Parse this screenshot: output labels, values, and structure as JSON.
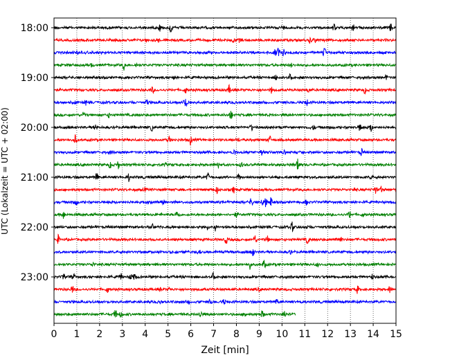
{
  "chart_data": {
    "type": "line",
    "chart_kind": "seismogram-helicorder",
    "xlabel": "Zeit  [min]",
    "ylabel": "UTC (Lokalzeit = UTC + 02:00)",
    "xlim": [
      0,
      15
    ],
    "x_ticks": [
      0,
      1,
      2,
      3,
      4,
      5,
      6,
      7,
      8,
      9,
      10,
      11,
      12,
      13,
      14,
      15
    ],
    "y_tick_labels": [
      "18:00",
      "19:00",
      "20:00",
      "21:00",
      "22:00",
      "23:00"
    ],
    "trace_interval_minutes": 15,
    "start_time": "18:00",
    "vertical_grid": "dotted",
    "trace_colors": [
      "#000000",
      "#ff0000",
      "#0000ff",
      "#008000"
    ],
    "traces": [
      {
        "start": "18:00",
        "color": "#000000",
        "end_minute": 15
      },
      {
        "start": "18:15",
        "color": "#ff0000",
        "end_minute": 15
      },
      {
        "start": "18:30",
        "color": "#0000ff",
        "end_minute": 15
      },
      {
        "start": "18:45",
        "color": "#008000",
        "end_minute": 15
      },
      {
        "start": "19:00",
        "color": "#000000",
        "end_minute": 15
      },
      {
        "start": "19:15",
        "color": "#ff0000",
        "end_minute": 15
      },
      {
        "start": "19:30",
        "color": "#0000ff",
        "end_minute": 15
      },
      {
        "start": "19:45",
        "color": "#008000",
        "end_minute": 15
      },
      {
        "start": "20:00",
        "color": "#000000",
        "end_minute": 15
      },
      {
        "start": "20:15",
        "color": "#ff0000",
        "end_minute": 15
      },
      {
        "start": "20:30",
        "color": "#0000ff",
        "end_minute": 15
      },
      {
        "start": "20:45",
        "color": "#008000",
        "end_minute": 15
      },
      {
        "start": "21:00",
        "color": "#000000",
        "end_minute": 15
      },
      {
        "start": "21:15",
        "color": "#ff0000",
        "end_minute": 15
      },
      {
        "start": "21:30",
        "color": "#0000ff",
        "end_minute": 15
      },
      {
        "start": "21:45",
        "color": "#008000",
        "end_minute": 15
      },
      {
        "start": "22:00",
        "color": "#000000",
        "end_minute": 15
      },
      {
        "start": "22:15",
        "color": "#ff0000",
        "end_minute": 15
      },
      {
        "start": "22:30",
        "color": "#0000ff",
        "end_minute": 15
      },
      {
        "start": "22:45",
        "color": "#008000",
        "end_minute": 15
      },
      {
        "start": "23:00",
        "color": "#000000",
        "end_minute": 15
      },
      {
        "start": "23:15",
        "color": "#ff0000",
        "end_minute": 15
      },
      {
        "start": "23:30",
        "color": "#0000ff",
        "end_minute": 15
      },
      {
        "start": "23:45",
        "color": "#008000",
        "end_minute": 10.6
      }
    ]
  }
}
